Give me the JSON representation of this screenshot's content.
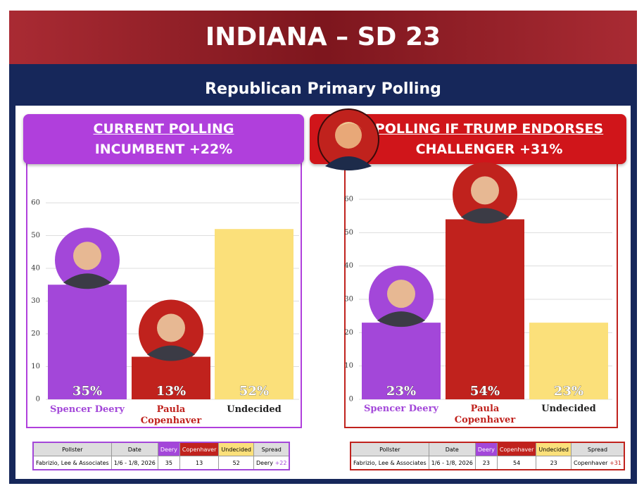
{
  "header": {
    "title": "INDIANA – SD 23",
    "subtitle": "Republican Primary Polling"
  },
  "chart_data": [
    {
      "type": "bar",
      "title": "CURRENT POLLING",
      "subtitle": "INCUMBENT +22%",
      "categories": [
        "Spencer Deery",
        "Paula Copenhaver",
        "Undecided"
      ],
      "values": [
        35,
        13,
        52
      ],
      "value_labels": [
        "35%",
        "13%",
        "52%"
      ],
      "colors": [
        "#a347d9",
        "#c0221d",
        "#fbe07a"
      ],
      "label_colors": [
        "#a347d9",
        "#c0221d",
        "#222222"
      ],
      "ylim": [
        0,
        60
      ],
      "yticks": [
        0,
        10,
        20,
        30,
        40,
        50,
        60
      ],
      "grid": true
    },
    {
      "type": "bar",
      "title": "POLLING IF TRUMP ENDORSES",
      "subtitle": "CHALLENGER +31%",
      "categories": [
        "Spencer Deery",
        "Paula Copenhaver",
        "Undecided"
      ],
      "values": [
        23,
        54,
        23
      ],
      "value_labels": [
        "23%",
        "54%",
        "23%"
      ],
      "colors": [
        "#a347d9",
        "#c0221d",
        "#fbe07a"
      ],
      "label_colors": [
        "#a347d9",
        "#c0221d",
        "#222222"
      ],
      "ylim": [
        0,
        60
      ],
      "yticks": [
        0,
        10,
        20,
        30,
        40,
        50,
        60
      ],
      "grid": true
    }
  ],
  "tables": [
    {
      "columns": [
        "Pollster",
        "Date",
        "Deery",
        "Copenhaver",
        "Undecided",
        "Spread"
      ],
      "rows": [
        [
          "Fabrizio, Lee & Associates",
          "1/6 - 1/8, 2026",
          35,
          13,
          52,
          "Deery",
          "+22"
        ]
      ]
    },
    {
      "columns": [
        "Pollster",
        "Date",
        "Deery",
        "Copenhaver",
        "Undecided",
        "Spread"
      ],
      "rows": [
        [
          "Fabrizio, Lee & Associates",
          "1/6 - 1/8, 2026",
          23,
          54,
          23,
          "Copenhaver",
          "+31"
        ]
      ]
    }
  ]
}
